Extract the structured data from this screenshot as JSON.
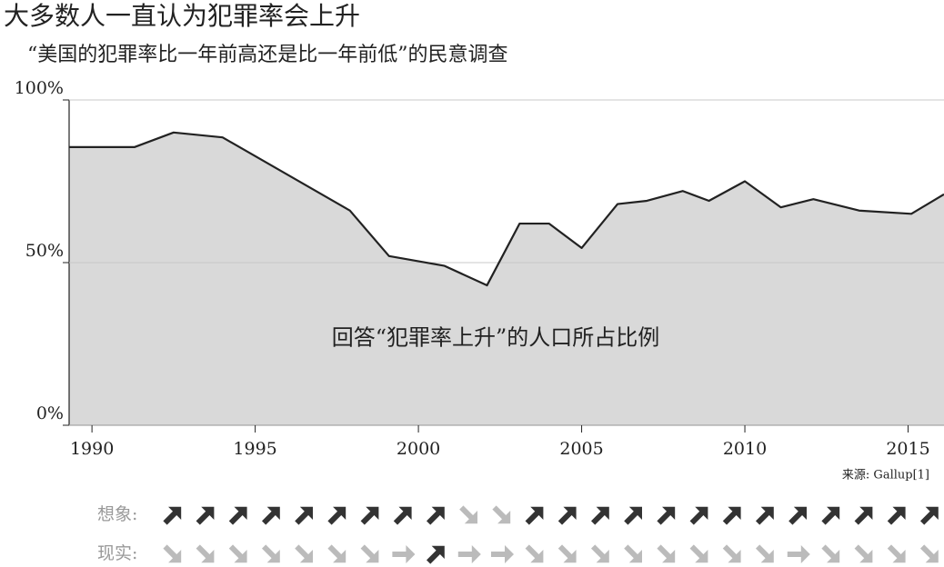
{
  "chart_data": {
    "type": "area",
    "title": "大多数人一直认为犯罪率会上升",
    "subtitle": "“美国的犯罪率比一年前高还是比一年前低”的民意调查",
    "annotation": "回答“犯罪率上升”的人口所占比例",
    "source": "来源: Gallup[1]",
    "x": [
      1989.3,
      1991.3,
      1992.5,
      1994.0,
      1997.9,
      1999.1,
      2000.8,
      2002.1,
      2003.1,
      2004.0,
      2005.0,
      2006.1,
      2007.0,
      2008.1,
      2008.9,
      2010.0,
      2011.1,
      2012.1,
      2013.5,
      2015.1,
      2016.1
    ],
    "values": [
      85.5,
      85.5,
      90,
      88.5,
      66,
      52,
      49,
      43,
      62,
      62,
      54.5,
      68,
      69,
      72,
      69,
      75,
      67,
      69.5,
      66,
      65,
      71
    ],
    "color": "#222222",
    "fill_color": "#d9d9d9",
    "xlim": [
      1989.3,
      2016.1
    ],
    "xticks": [
      1990,
      1995,
      2000,
      2005,
      2010,
      2015
    ],
    "ylim": [
      0,
      100
    ],
    "yticks": [
      {
        "value": 0,
        "label": "0%"
      },
      {
        "value": 50,
        "label": "50%"
      },
      {
        "value": 100,
        "label": "100%"
      }
    ],
    "grid": true,
    "arrow_up_color": "#333333",
    "arrow_other_color": "#bbbbbb",
    "arrow_rows": [
      {
        "label": "想象:",
        "values": [
          1,
          1,
          1,
          1,
          1,
          1,
          1,
          1,
          1,
          -1,
          -1,
          1,
          1,
          1,
          1,
          1,
          1,
          1,
          1,
          1,
          1,
          1,
          1,
          1
        ]
      },
      {
        "label": "现实:",
        "values": [
          -1,
          -1,
          -1,
          -1,
          -1,
          -1,
          -1,
          0,
          1,
          0,
          0,
          -1,
          -1,
          -1,
          -1,
          -1,
          -1,
          -1,
          -1,
          0,
          -1,
          -1,
          -1,
          -1
        ]
      }
    ]
  }
}
